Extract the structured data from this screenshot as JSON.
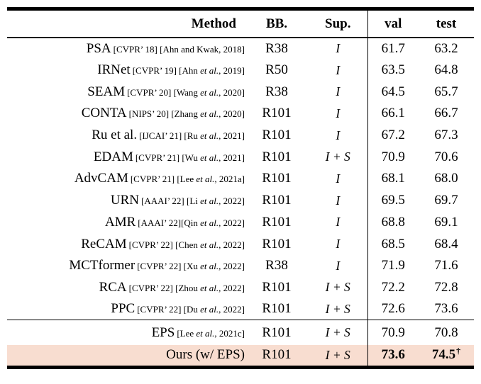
{
  "colors": {
    "background": "#ffffff",
    "highlight_row": "#f8ddd0",
    "rule_color": "#000000",
    "text": "#000000"
  },
  "table": {
    "headers": {
      "method": "Method",
      "bb": "BB.",
      "sup": "Sup.",
      "val": "val",
      "test": "test"
    },
    "sections": [
      {
        "name": "comparison-methods",
        "rows": [
          {
            "method": "PSA",
            "cite": "[CVPR’ 18] [Ahn and Kwak, 2018]",
            "bb": "R38",
            "sup": "I",
            "val": "61.7",
            "test": "63.2"
          },
          {
            "method": "IRNet",
            "cite": "[CVPR’ 19] [Ahn et al., 2019]",
            "bb": "R50",
            "sup": "I",
            "val": "63.5",
            "test": "64.8"
          },
          {
            "method": "SEAM",
            "cite": "[CVPR’ 20] [Wang et al., 2020]",
            "bb": "R38",
            "sup": "I",
            "val": "64.5",
            "test": "65.7"
          },
          {
            "method": "CONTA",
            "cite": "[NIPS’ 20] [Zhang et al., 2020]",
            "bb": "R101",
            "sup": "I",
            "val": "66.1",
            "test": "66.7"
          },
          {
            "method": "Ru et al.",
            "cite": "[IJCAI’ 21] [Ru et al., 2021]",
            "bb": "R101",
            "sup": "I",
            "val": "67.2",
            "test": "67.3"
          },
          {
            "method": "EDAM",
            "cite": "[CVPR’ 21] [Wu et al., 2021]",
            "bb": "R101",
            "sup": "I + S",
            "val": "70.9",
            "test": "70.6"
          },
          {
            "method": "AdvCAM",
            "cite": "[CVPR’ 21] [Lee et al., 2021a]",
            "bb": "R101",
            "sup": "I",
            "val": "68.1",
            "test": "68.0"
          },
          {
            "method": "URN",
            "cite": "[AAAI’ 22] [Li et al., 2022]",
            "bb": "R101",
            "sup": "I",
            "val": "69.5",
            "test": "69.7"
          },
          {
            "method": "AMR",
            "cite": "[AAAI’ 22][Qin et al., 2022]",
            "bb": "R101",
            "sup": "I",
            "val": "68.8",
            "test": "69.1"
          },
          {
            "method": "ReCAM",
            "cite": "[CVPR’ 22] [Chen et al., 2022]",
            "bb": "R101",
            "sup": "I",
            "val": "68.5",
            "test": "68.4"
          },
          {
            "method": "MCTformer",
            "cite": "[CVPR’ 22] [Xu et al., 2022]",
            "bb": "R38",
            "sup": "I",
            "val": "71.9",
            "test": "71.6"
          },
          {
            "method": "RCA",
            "cite": "[CVPR’ 22] [Zhou et al., 2022]",
            "bb": "R101",
            "sup": "I + S",
            "val": "72.2",
            "test": "72.8"
          },
          {
            "method": "PPC",
            "cite": "[CVPR’ 22] [Du et al., 2022]",
            "bb": "R101",
            "sup": "I + S",
            "val": "72.6",
            "test": "73.6"
          }
        ]
      },
      {
        "name": "baseline-and-ours",
        "rows": [
          {
            "method": "EPS",
            "cite": "[Lee et al., 2021c]",
            "bb": "R101",
            "sup": "I + S",
            "val": "70.9",
            "test": "70.8"
          },
          {
            "method": "Ours (w/ EPS)",
            "bb": "R101",
            "sup": "I + S",
            "val": "73.6",
            "test": "74.5",
            "test_sup": "†",
            "bold": true,
            "highlight": true
          }
        ]
      }
    ]
  }
}
